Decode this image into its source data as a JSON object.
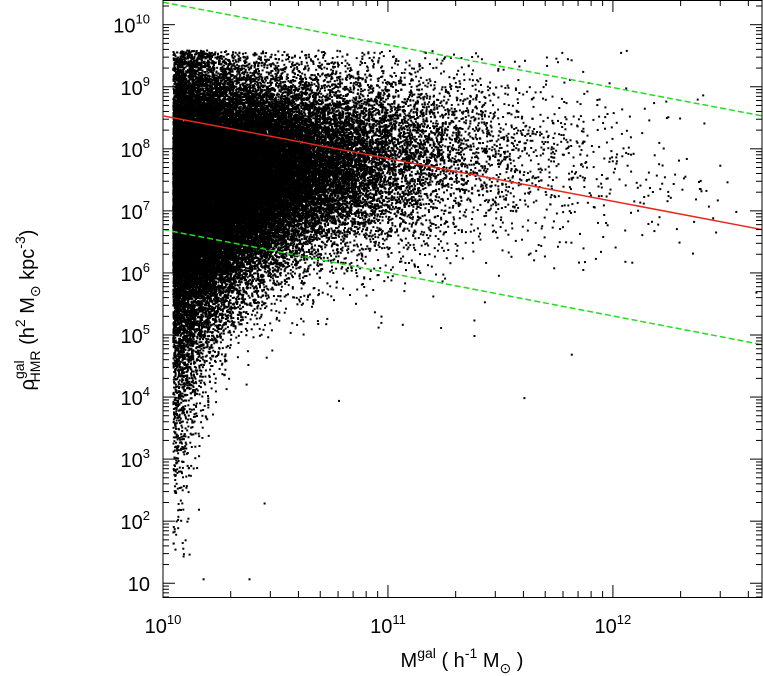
{
  "chart_data": {
    "type": "scatter",
    "x_scale": "log",
    "y_scale": "log",
    "xlim": [
      10000000000.0,
      4600000000000.0
    ],
    "ylim": [
      6,
      25000000000.0
    ],
    "grid": false,
    "xlabel": {
      "pre": "M",
      "sup": "gal",
      "mid": " ( h",
      "sup2": "-1",
      "mid2": "  M",
      "sym": "⊙",
      "post": " )"
    },
    "ylabel": {
      "pre": "ρ",
      "sup": "gal",
      "sub": "HMR",
      "mid": " (h",
      "sup2": "2",
      "mid2": " M",
      "sym": "⊙",
      "mid3": "  kpc",
      "sup3": "-3",
      "post": ")"
    },
    "x_ticks": [
      {
        "value": 10000000000.0,
        "base": "10",
        "exp": "10"
      },
      {
        "value": 100000000000.0,
        "base": "10",
        "exp": "11"
      },
      {
        "value": 1000000000000.0,
        "base": "10",
        "exp": "12"
      }
    ],
    "y_ticks": [
      {
        "value": 10,
        "base": "10",
        "exp": ""
      },
      {
        "value": 100,
        "base": "10",
        "exp": "2"
      },
      {
        "value": 1000,
        "base": "10",
        "exp": "3"
      },
      {
        "value": 10000,
        "base": "10",
        "exp": "4"
      },
      {
        "value": 100000,
        "base": "10",
        "exp": "5"
      },
      {
        "value": 1000000,
        "base": "10",
        "exp": "6"
      },
      {
        "value": 10000000,
        "base": "10",
        "exp": "7"
      },
      {
        "value": 100000000,
        "base": "10",
        "exp": "8"
      },
      {
        "value": 1000000000,
        "base": "10",
        "exp": "9"
      },
      {
        "value": 10000000000,
        "base": "10",
        "exp": "10"
      }
    ],
    "reference_lines": [
      {
        "style": "solid",
        "color": "#e8261c",
        "x": [
          10000000000.0,
          4600000000000.0
        ],
        "y": [
          340000000.0,
          5000000.0
        ]
      },
      {
        "style": "dashed",
        "color": "#22dd22",
        "x": [
          10000000000.0,
          4600000000000.0
        ],
        "y": [
          23000000000.0,
          340000000.0
        ]
      },
      {
        "style": "dashed",
        "color": "#22dd22",
        "x": [
          10000000000.0,
          4600000000000.0
        ],
        "y": [
          5000000.0,
          70000.0
        ]
      }
    ],
    "scatter_model": {
      "point_count": 60000,
      "point_color": "#000000",
      "x_range": [
        11000000000.0,
        4500000000000.0
      ],
      "density_note": "dense cloud of galaxies, peaks near 1e7-1e8 at low mass, tail to 1e2 below 2e10"
    },
    "sample_points": [
      {
        "x": 13000000000.0,
        "y": 30
      },
      {
        "x": 15000000000.0,
        "y": 12
      },
      {
        "x": 24000000000.0,
        "y": 12
      },
      {
        "x": 28000000000.0,
        "y": 200
      },
      {
        "x": 60000000000.0,
        "y": 9000
      },
      {
        "x": 400000000000.0,
        "y": 10000
      },
      {
        "x": 240000000000.0,
        "y": 100000
      },
      {
        "x": 650000000000.0,
        "y": 50000
      },
      {
        "x": 3200000000000.0,
        "y": 30000000.0
      },
      {
        "x": 4300000000000.0,
        "y": 500000
      },
      {
        "x": 3500000000000.0,
        "y": 10000000.0
      },
      {
        "x": 210000000000.0,
        "y": 3000000000.0
      },
      {
        "x": 380000000000.0,
        "y": 2200000000.0
      },
      {
        "x": 730000000000.0,
        "y": 1800000000.0
      }
    ],
    "colors": {
      "axis": "#000000",
      "points": "#000000",
      "background": "#ffffff"
    }
  }
}
